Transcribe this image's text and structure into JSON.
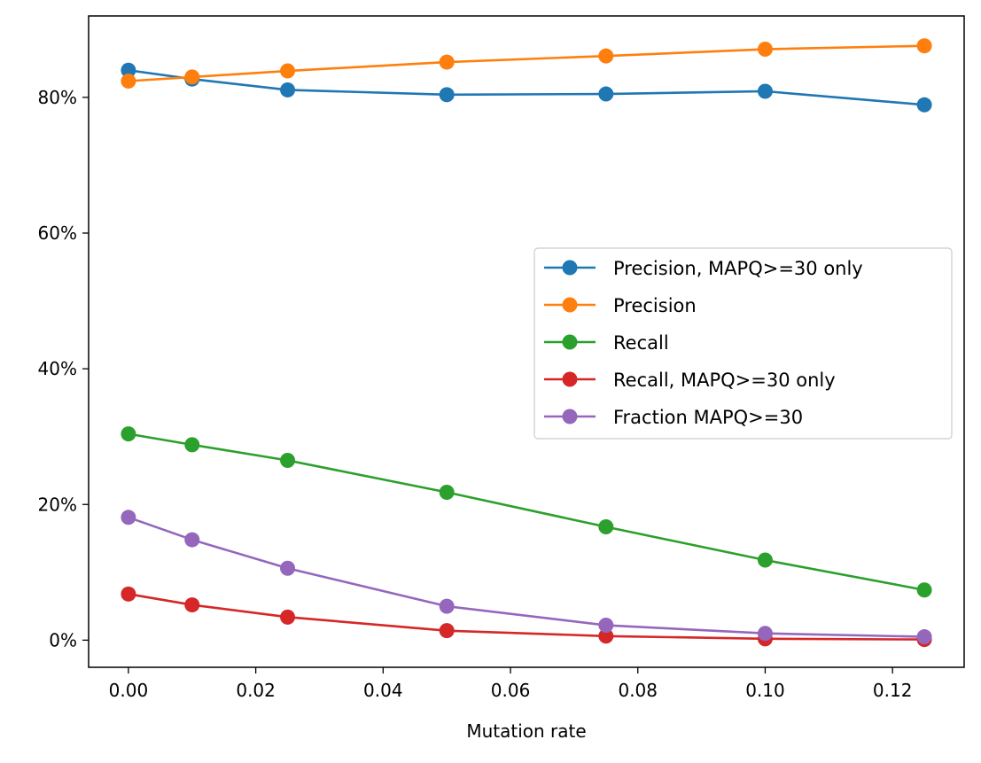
{
  "chart_data": {
    "type": "line",
    "title": "",
    "xlabel": "Mutation rate",
    "ylabel": "",
    "x": [
      0.0,
      0.01,
      0.025,
      0.05,
      0.075,
      0.1,
      0.125
    ],
    "xlim": [
      -0.00625,
      0.13125
    ],
    "ylim": [
      -4,
      92
    ],
    "x_ticks": [
      0.0,
      0.02,
      0.04,
      0.06,
      0.08,
      0.1,
      0.12
    ],
    "x_tick_labels": [
      "0.00",
      "0.02",
      "0.04",
      "0.06",
      "0.08",
      "0.10",
      "0.12"
    ],
    "y_ticks": [
      0,
      20,
      40,
      60,
      80
    ],
    "y_tick_labels": [
      "0%",
      "20%",
      "40%",
      "60%",
      "80%"
    ],
    "grid": false,
    "legend_position": "center-right",
    "series": [
      {
        "name": "Precision, MAPQ>=30 only",
        "color": "#1f77b4",
        "values": [
          84.0,
          82.7,
          81.1,
          80.4,
          80.5,
          80.9,
          78.9
        ]
      },
      {
        "name": "Precision",
        "color": "#ff7f0e",
        "values": [
          82.4,
          83.0,
          83.9,
          85.2,
          86.1,
          87.1,
          87.6
        ]
      },
      {
        "name": "Recall",
        "color": "#2ca02c",
        "values": [
          30.4,
          28.8,
          26.5,
          21.8,
          16.7,
          11.8,
          7.4
        ]
      },
      {
        "name": "Recall, MAPQ>=30 only",
        "color": "#d62728",
        "values": [
          6.8,
          5.2,
          3.4,
          1.4,
          0.6,
          0.2,
          0.1
        ]
      },
      {
        "name": "Fraction MAPQ>=30",
        "color": "#9467bd",
        "values": [
          18.1,
          14.8,
          10.6,
          5.0,
          2.2,
          1.0,
          0.5
        ]
      }
    ]
  }
}
